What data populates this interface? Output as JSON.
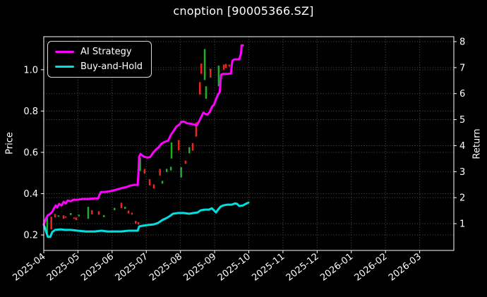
{
  "chart_data": {
    "type": "line+candlestick",
    "title": "cnoption [90005366.SZ]",
    "background": "#000000",
    "text_color": "#ffffff",
    "grid": {
      "color": "#565656",
      "style": "dotted"
    },
    "x": {
      "tick_labels": [
        "2025-04",
        "2025-05",
        "2025-06",
        "2025-07",
        "2025-08",
        "2025-09",
        "2025-10",
        "2025-11",
        "2025-12",
        "2026-01",
        "2026-02",
        "2026-03"
      ],
      "range_months": [
        0,
        12
      ],
      "note": "months offset from 2025-04"
    },
    "y_left": {
      "label": "Price",
      "ticks": [
        0.2,
        0.4,
        0.6,
        0.8,
        1.0
      ],
      "range": [
        0.125,
        1.16
      ]
    },
    "y_right": {
      "label": "Return",
      "ticks": [
        1,
        2,
        3,
        4,
        5,
        6,
        7,
        8
      ],
      "range": [
        -0.03,
        8.19
      ]
    },
    "legend": {
      "position": "upper-left"
    },
    "series": [
      {
        "name": "AI Strategy",
        "color": "#ff00ff",
        "axis": "right",
        "points": [
          [
            0.0,
            0.95
          ],
          [
            0.06,
            1.19
          ],
          [
            0.12,
            1.32
          ],
          [
            0.19,
            1.38
          ],
          [
            0.25,
            1.46
          ],
          [
            0.29,
            1.57
          ],
          [
            0.35,
            1.7
          ],
          [
            0.39,
            1.62
          ],
          [
            0.45,
            1.76
          ],
          [
            0.52,
            1.7
          ],
          [
            0.58,
            1.84
          ],
          [
            0.64,
            1.78
          ],
          [
            0.7,
            1.89
          ],
          [
            0.79,
            1.86
          ],
          [
            0.87,
            1.92
          ],
          [
            0.99,
            1.92
          ],
          [
            1.14,
            1.95
          ],
          [
            1.3,
            1.95
          ],
          [
            1.47,
            1.97
          ],
          [
            1.59,
            1.97
          ],
          [
            1.63,
            2.11
          ],
          [
            1.67,
            2.22
          ],
          [
            1.78,
            2.22
          ],
          [
            1.9,
            2.24
          ],
          [
            2.02,
            2.27
          ],
          [
            2.15,
            2.32
          ],
          [
            2.23,
            2.35
          ],
          [
            2.31,
            2.38
          ],
          [
            2.42,
            2.41
          ],
          [
            2.52,
            2.46
          ],
          [
            2.64,
            2.49
          ],
          [
            2.75,
            2.49
          ],
          [
            2.77,
            2.95
          ],
          [
            2.79,
            3.57
          ],
          [
            2.83,
            3.68
          ],
          [
            2.89,
            3.62
          ],
          [
            2.95,
            3.57
          ],
          [
            3.04,
            3.54
          ],
          [
            3.12,
            3.57
          ],
          [
            3.2,
            3.73
          ],
          [
            3.29,
            3.86
          ],
          [
            3.37,
            3.95
          ],
          [
            3.45,
            4.08
          ],
          [
            3.53,
            4.14
          ],
          [
            3.64,
            4.19
          ],
          [
            3.72,
            4.41
          ],
          [
            3.8,
            4.57
          ],
          [
            3.88,
            4.73
          ],
          [
            3.97,
            4.81
          ],
          [
            4.03,
            4.92
          ],
          [
            4.11,
            4.92
          ],
          [
            4.19,
            4.86
          ],
          [
            4.3,
            4.84
          ],
          [
            4.4,
            4.81
          ],
          [
            4.48,
            4.78
          ],
          [
            4.55,
            4.95
          ],
          [
            4.61,
            5.11
          ],
          [
            4.67,
            5.27
          ],
          [
            4.73,
            5.22
          ],
          [
            4.79,
            5.19
          ],
          [
            4.86,
            5.3
          ],
          [
            4.92,
            5.49
          ],
          [
            4.98,
            5.57
          ],
          [
            5.04,
            5.78
          ],
          [
            5.1,
            5.97
          ],
          [
            5.15,
            6.05
          ],
          [
            5.17,
            6.43
          ],
          [
            5.19,
            6.73
          ],
          [
            5.25,
            6.76
          ],
          [
            5.33,
            6.76
          ],
          [
            5.41,
            6.76
          ],
          [
            5.48,
            6.78
          ],
          [
            5.5,
            7.08
          ],
          [
            5.52,
            7.27
          ],
          [
            5.58,
            7.32
          ],
          [
            5.66,
            7.32
          ],
          [
            5.72,
            7.32
          ],
          [
            5.77,
            7.54
          ],
          [
            5.79,
            7.86
          ],
          [
            5.83,
            7.86
          ]
        ]
      },
      {
        "name": "Buy-and-Hold",
        "color": "#00e0e0",
        "axis": "right",
        "points": [
          [
            0.0,
            0.97
          ],
          [
            0.06,
            0.73
          ],
          [
            0.12,
            0.49
          ],
          [
            0.19,
            0.49
          ],
          [
            0.25,
            0.68
          ],
          [
            0.33,
            0.76
          ],
          [
            0.5,
            0.78
          ],
          [
            0.62,
            0.76
          ],
          [
            0.79,
            0.76
          ],
          [
            0.99,
            0.73
          ],
          [
            1.24,
            0.7
          ],
          [
            1.49,
            0.7
          ],
          [
            1.69,
            0.73
          ],
          [
            1.86,
            0.7
          ],
          [
            2.07,
            0.7
          ],
          [
            2.27,
            0.7
          ],
          [
            2.48,
            0.73
          ],
          [
            2.64,
            0.73
          ],
          [
            2.75,
            0.73
          ],
          [
            2.79,
            0.89
          ],
          [
            2.89,
            0.92
          ],
          [
            3.06,
            0.95
          ],
          [
            3.22,
            0.97
          ],
          [
            3.35,
            1.03
          ],
          [
            3.47,
            1.14
          ],
          [
            3.6,
            1.22
          ],
          [
            3.7,
            1.3
          ],
          [
            3.78,
            1.38
          ],
          [
            3.93,
            1.41
          ],
          [
            4.09,
            1.41
          ],
          [
            4.26,
            1.38
          ],
          [
            4.38,
            1.41
          ],
          [
            4.5,
            1.43
          ],
          [
            4.59,
            1.51
          ],
          [
            4.71,
            1.54
          ],
          [
            4.83,
            1.54
          ],
          [
            4.92,
            1.59
          ],
          [
            4.98,
            1.51
          ],
          [
            5.04,
            1.43
          ],
          [
            5.1,
            1.54
          ],
          [
            5.17,
            1.65
          ],
          [
            5.25,
            1.7
          ],
          [
            5.37,
            1.73
          ],
          [
            5.5,
            1.73
          ],
          [
            5.6,
            1.78
          ],
          [
            5.66,
            1.76
          ],
          [
            5.72,
            1.68
          ],
          [
            5.83,
            1.7
          ],
          [
            5.91,
            1.76
          ],
          [
            5.99,
            1.81
          ]
        ]
      }
    ],
    "candles": {
      "axis": "left",
      "up_color": "#1fae28",
      "down_color": "#e8261f",
      "points": [
        [
          0.1,
          0.21,
          0.295,
          "g"
        ],
        [
          0.22,
          0.227,
          0.288,
          "r"
        ],
        [
          0.33,
          0.285,
          0.302,
          "r"
        ],
        [
          0.43,
          0.288,
          0.295,
          "g"
        ],
        [
          0.58,
          0.278,
          0.295,
          "r"
        ],
        [
          0.64,
          0.285,
          0.29,
          "r"
        ],
        [
          0.79,
          0.296,
          0.306,
          "g"
        ],
        [
          0.89,
          0.278,
          0.285,
          "r"
        ],
        [
          0.95,
          0.272,
          0.285,
          "r"
        ],
        [
          1.03,
          0.29,
          0.298,
          "g"
        ],
        [
          1.3,
          0.278,
          0.336,
          "g"
        ],
        [
          1.41,
          0.3,
          0.32,
          "r"
        ],
        [
          1.61,
          0.298,
          0.315,
          "r"
        ],
        [
          1.76,
          0.286,
          0.296,
          "g"
        ],
        [
          2.07,
          0.32,
          0.331,
          "g"
        ],
        [
          2.27,
          0.33,
          0.356,
          "r"
        ],
        [
          2.38,
          0.326,
          0.336,
          "g"
        ],
        [
          2.48,
          0.304,
          0.318,
          "r"
        ],
        [
          2.58,
          0.298,
          0.308,
          "r"
        ],
        [
          2.69,
          0.254,
          0.268,
          "r"
        ],
        [
          2.77,
          0.25,
          0.262,
          "r"
        ],
        [
          2.82,
          0.51,
          0.575,
          "g"
        ],
        [
          2.95,
          0.497,
          0.52,
          "r"
        ],
        [
          3.1,
          0.44,
          0.47,
          "r"
        ],
        [
          3.22,
          0.425,
          0.445,
          "r"
        ],
        [
          3.4,
          0.488,
          0.52,
          "r"
        ],
        [
          3.47,
          0.448,
          0.462,
          "g"
        ],
        [
          3.6,
          0.505,
          0.52,
          "g"
        ],
        [
          3.72,
          0.512,
          0.53,
          "g"
        ],
        [
          3.74,
          0.57,
          0.648,
          "g"
        ],
        [
          3.95,
          0.61,
          0.66,
          "r"
        ],
        [
          4.02,
          0.478,
          0.528,
          "g"
        ],
        [
          4.15,
          0.545,
          0.56,
          "r"
        ],
        [
          4.26,
          0.595,
          0.625,
          "g"
        ],
        [
          4.36,
          0.608,
          0.645,
          "r"
        ],
        [
          4.46,
          0.676,
          0.745,
          "r"
        ],
        [
          4.57,
          0.88,
          0.94,
          "r"
        ],
        [
          4.61,
          0.98,
          1.03,
          "r"
        ],
        [
          4.71,
          0.95,
          1.1,
          "g"
        ],
        [
          4.75,
          0.86,
          0.92,
          "g"
        ],
        [
          4.88,
          0.962,
          1.005,
          "r"
        ],
        [
          5.12,
          0.92,
          1.02,
          "g"
        ],
        [
          5.27,
          1.0,
          1.025,
          "r"
        ],
        [
          5.33,
          1.008,
          1.028,
          "r"
        ],
        [
          5.43,
          1.015,
          1.025,
          "r"
        ],
        [
          5.5,
          1.02,
          1.03,
          "r"
        ]
      ]
    }
  }
}
